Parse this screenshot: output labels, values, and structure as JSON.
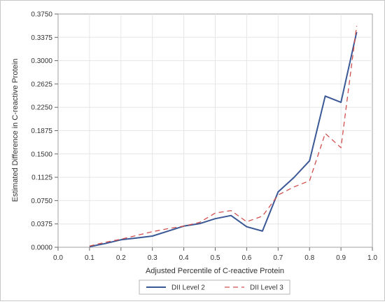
{
  "chart_data": {
    "type": "line",
    "title": "",
    "xlabel": "Adjusted Percentile of C-reactive Protein",
    "ylabel": "Estimated Difference in C-reactive Protein",
    "xlim": [
      0.0,
      1.0
    ],
    "ylim": [
      0.0,
      0.375
    ],
    "x_ticks": [
      "0.0",
      "0.1",
      "0.2",
      "0.3",
      "0.4",
      "0.5",
      "0.6",
      "0.7",
      "0.8",
      "0.9",
      "1.0"
    ],
    "y_ticks": [
      "0.0000",
      "0.0375",
      "0.0750",
      "0.1125",
      "0.1500",
      "0.1875",
      "0.2250",
      "0.2625",
      "0.3000",
      "0.3375",
      "0.3750"
    ],
    "grid": true,
    "legend_position": "bottom",
    "x": [
      0.1,
      0.15,
      0.2,
      0.25,
      0.3,
      0.35,
      0.4,
      0.45,
      0.5,
      0.55,
      0.6,
      0.65,
      0.7,
      0.75,
      0.8,
      0.85,
      0.9,
      0.95
    ],
    "series": [
      {
        "name": "DII Level 2",
        "color": "#3a5896",
        "style": "solid",
        "values": [
          0.001,
          0.006,
          0.012,
          0.015,
          0.018,
          0.026,
          0.034,
          0.038,
          0.046,
          0.051,
          0.033,
          0.026,
          0.089,
          0.112,
          0.139,
          0.243,
          0.233,
          0.346
        ]
      },
      {
        "name": "DII Level 3",
        "color": "#d0504f",
        "style": "dashed",
        "values": [
          0.002,
          0.008,
          0.013,
          0.019,
          0.025,
          0.03,
          0.034,
          0.04,
          0.055,
          0.059,
          0.041,
          0.05,
          0.084,
          0.097,
          0.107,
          0.183,
          0.16,
          0.356
        ]
      }
    ]
  }
}
